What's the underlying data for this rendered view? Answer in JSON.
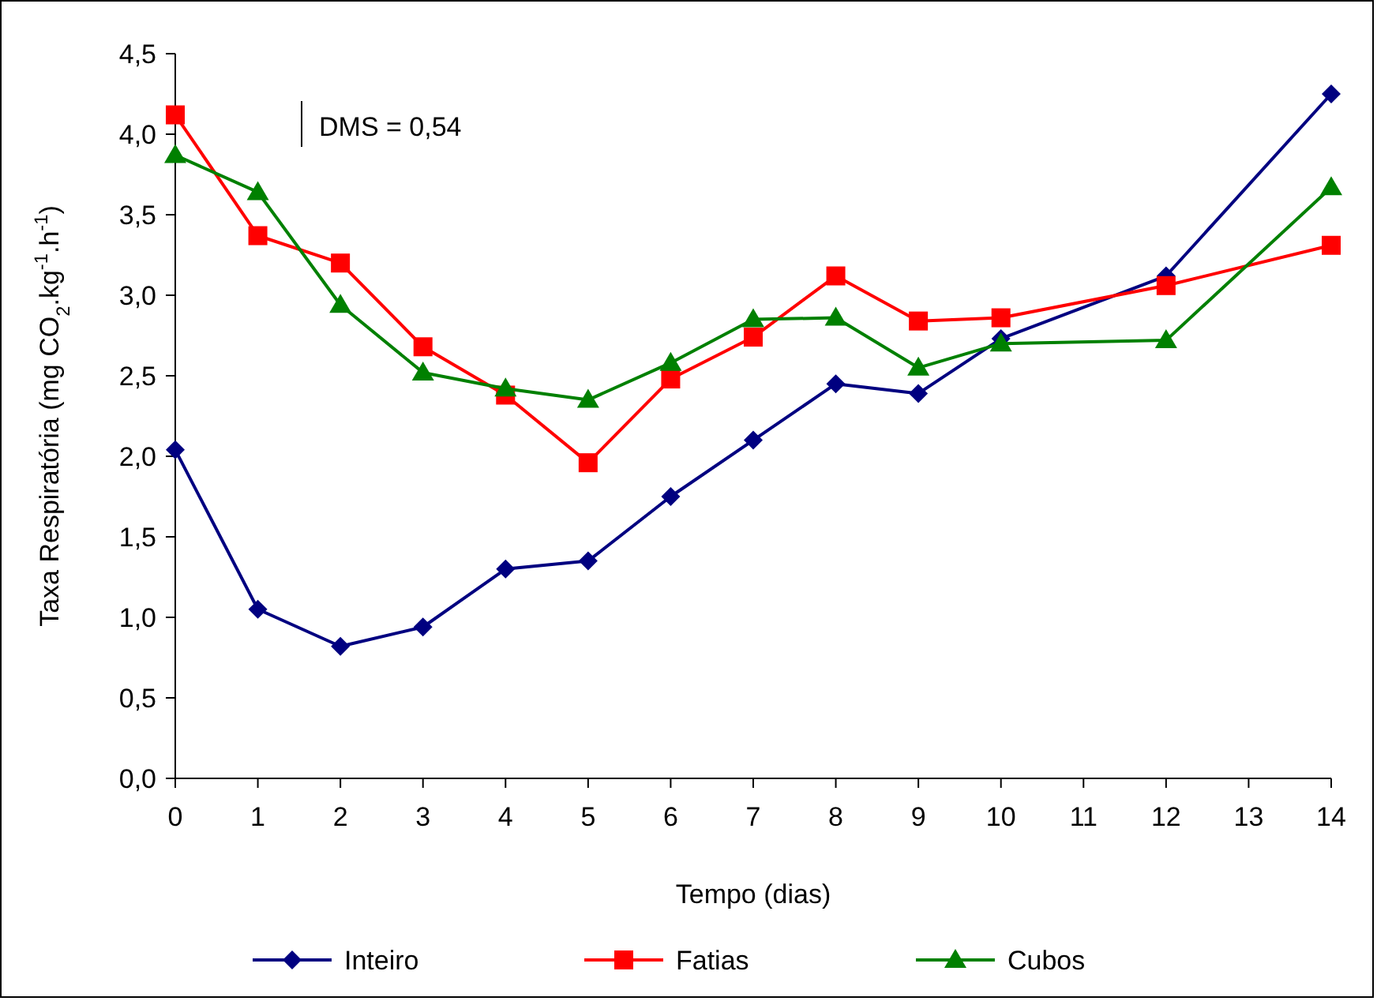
{
  "chart_data": {
    "type": "line",
    "xlabel": "Tempo (dias)",
    "ylabel": "Taxa Respiratória (mg CO$_{2}$.kg$^{-1}$.h$^{-1}$)",
    "annotations": [
      "DMS = 0,54"
    ],
    "ylim": [
      0,
      4.5
    ],
    "yticks": [
      {
        "value": 0,
        "label": "0,0"
      },
      {
        "value": 0.5,
        "label": "0,5"
      },
      {
        "value": 1,
        "label": "1,0"
      },
      {
        "value": 1.5,
        "label": "1,5"
      },
      {
        "value": 2,
        "label": "2,0"
      },
      {
        "value": 2.5,
        "label": "2,5"
      },
      {
        "value": 3,
        "label": "3,0"
      },
      {
        "value": 3.5,
        "label": "3,5"
      },
      {
        "value": 4,
        "label": "4,0"
      },
      {
        "value": 4.5,
        "label": "4,5"
      }
    ],
    "xlim": [
      0,
      14
    ],
    "xticks": [
      0,
      1,
      2,
      3,
      4,
      5,
      6,
      7,
      8,
      9,
      10,
      11,
      12,
      13,
      14
    ],
    "x": [
      0,
      1,
      2,
      3,
      4,
      5,
      6,
      7,
      8,
      9,
      10,
      12,
      14
    ],
    "grid": false,
    "legend": "bottom",
    "line_style": "solid",
    "series": [
      {
        "name": "Inteiro",
        "color": "#000080",
        "marker": "diamond",
        "values": [
          2.04,
          1.05,
          0.82,
          0.94,
          1.3,
          1.35,
          1.75,
          2.1,
          2.45,
          2.39,
          2.73,
          3.12,
          4.25
        ]
      },
      {
        "name": "Fatias",
        "color": "#ff0000",
        "marker": "square",
        "values": [
          4.12,
          3.37,
          3.2,
          2.68,
          2.38,
          1.96,
          2.48,
          2.74,
          3.12,
          2.84,
          2.86,
          3.06,
          3.31
        ]
      },
      {
        "name": "Cubos",
        "color": "#008000",
        "marker": "triangle",
        "values": [
          3.87,
          3.64,
          2.94,
          2.52,
          2.42,
          2.35,
          2.58,
          2.85,
          2.86,
          2.55,
          2.7,
          2.72,
          3.67
        ]
      }
    ]
  }
}
